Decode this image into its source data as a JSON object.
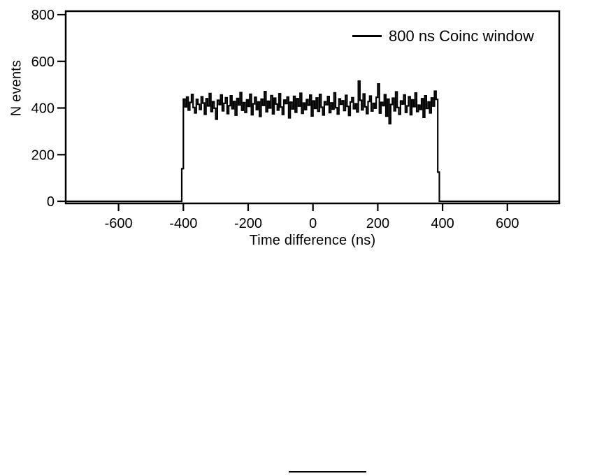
{
  "page": {
    "background": "#ffffff",
    "text_color": "#000000"
  },
  "chart_data": {
    "type": "line",
    "title": "",
    "xlabel": "Time difference (ns)",
    "ylabel": "N events",
    "legend": [
      {
        "label": "800 ns Coinc window",
        "color": "#000000"
      }
    ],
    "legend_position": "top-right-inside",
    "grid": false,
    "xlim": [
      -763,
      760
    ],
    "ylim": [
      0,
      815
    ],
    "xticks": [
      -600,
      -400,
      -200,
      0,
      200,
      400,
      600
    ],
    "yticks": [
      0,
      200,
      400,
      600,
      800
    ],
    "series_description": "Flat-top coincidence-window timing histogram: ~0 counts outside the window, noisy plateau around 420 counts between -405 ns and +390 ns",
    "window": {
      "start_ns": -405,
      "end_ns": 390,
      "bin_width_ns": 5,
      "baseline": 0,
      "mean_level": 420
    },
    "bins": [
      140,
      438,
      405,
      447,
      391,
      424,
      458,
      402,
      379,
      437,
      416,
      394,
      448,
      421,
      373,
      440,
      409,
      462,
      385,
      427,
      399,
      352,
      433,
      415,
      456,
      388,
      420,
      444,
      376,
      410,
      452,
      397,
      428,
      369,
      441,
      413,
      466,
      390,
      423,
      381,
      435,
      407,
      459,
      371,
      418,
      446,
      393,
      426,
      364,
      438,
      411,
      470,
      384,
      429,
      400,
      453,
      375,
      442,
      417,
      391,
      461,
      404,
      372,
      434,
      419,
      447,
      358,
      425,
      396,
      450,
      382,
      440,
      408,
      463,
      377,
      421,
      393,
      436,
      412,
      455,
      366,
      430,
      398,
      443,
      386,
      458,
      403,
      370,
      427,
      414,
      449,
      380,
      422,
      395,
      465,
      401,
      374,
      439,
      416,
      431,
      389,
      454,
      407,
      368,
      426,
      444,
      397,
      418,
      383,
      515,
      433,
      392,
      460,
      405,
      376,
      428,
      451,
      387,
      420,
      399,
      446,
      503,
      378,
      424,
      410,
      457,
      365,
      438,
      333,
      415,
      442,
      388,
      469,
      402,
      373,
      430,
      417,
      456,
      381,
      409,
      448,
      371,
      435,
      406,
      464,
      385,
      412,
      394,
      440,
      360,
      452,
      398,
      426,
      379,
      443,
      408,
      472,
      437,
      125
    ]
  },
  "divider": {
    "color": "#000000"
  }
}
